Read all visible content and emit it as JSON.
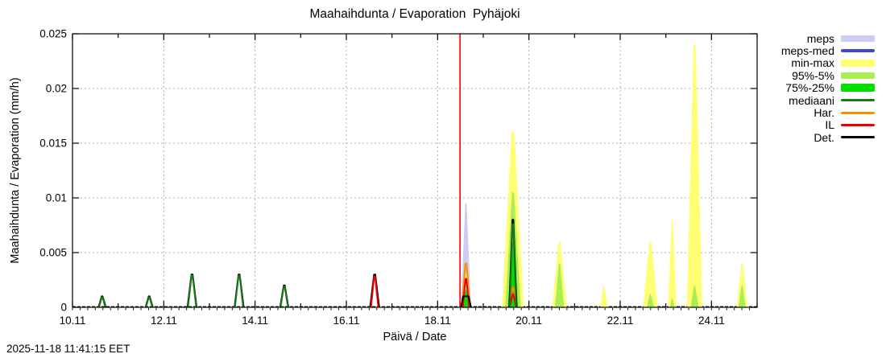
{
  "timestamp": "2025-11-18 11:41:15 EET",
  "legend": {
    "items": [
      {
        "label": "meps",
        "series": "meps"
      },
      {
        "label": "meps-med",
        "series": "meps_med"
      },
      {
        "label": "min-max",
        "series": "minmax"
      },
      {
        "label": "95%-5%",
        "series": "p95"
      },
      {
        "label": "75%-25%",
        "series": "p75"
      },
      {
        "label": "mediaani",
        "series": "mediaani"
      },
      {
        "label": "Har.",
        "series": "har"
      },
      {
        "label": "IL",
        "series": "il"
      },
      {
        "label": "Det.",
        "series": "det"
      }
    ]
  },
  "chart_data": {
    "type": "area",
    "title": "Maahaihdunta / Evaporation  Pyhäjoki",
    "xlabel": "Päivä / Date",
    "ylabel": "Maahaihdunta / Evaporation (mm/h)",
    "ylim": [
      0,
      0.025
    ],
    "x_span_days": 15,
    "grid": "dashed-major",
    "legend_position": "outside-right",
    "now_line_day": 8.49,
    "now_line_color": "#ff0000",
    "grid_color": "#b0b0b0",
    "x_ticks": [
      {
        "day": 0,
        "label": "10.11"
      },
      {
        "day": 2,
        "label": "12.11"
      },
      {
        "day": 4,
        "label": "14.11"
      },
      {
        "day": 6,
        "label": "16.11"
      },
      {
        "day": 8,
        "label": "18.11"
      },
      {
        "day": 10,
        "label": "20.11"
      },
      {
        "day": 12,
        "label": "22.11"
      },
      {
        "day": 14,
        "label": "24.11"
      }
    ],
    "y_ticks": [
      {
        "value": 0,
        "label": "0"
      },
      {
        "value": 0.005,
        "label": "0.005"
      },
      {
        "value": 0.01,
        "label": "0.01"
      },
      {
        "value": 0.015,
        "label": "0.015"
      },
      {
        "value": 0.02,
        "label": "0.02"
      },
      {
        "value": 0.025,
        "label": "0.025"
      }
    ],
    "styles": {
      "meps": {
        "color": "#ccccf2",
        "kind": "band",
        "swatch_h": 8
      },
      "meps_med": {
        "color": "#4444cc",
        "kind": "line",
        "swatch_h": 4
      },
      "minmax": {
        "color": "#ffff73",
        "kind": "band",
        "swatch_h": 9
      },
      "p95": {
        "color": "#a9ee55",
        "kind": "band",
        "swatch_h": 8
      },
      "p75": {
        "color": "#00e000",
        "kind": "band",
        "swatch_h": 10
      },
      "mediaani": {
        "color": "#1a7a1a",
        "kind": "line",
        "swatch_h": 3
      },
      "har": {
        "color": "#ff8c00",
        "kind": "line",
        "swatch_h": 3
      },
      "il": {
        "color": "#ee0000",
        "kind": "line",
        "swatch_h": 3
      },
      "det": {
        "color": "#000000",
        "kind": "line",
        "swatch_h": 3
      }
    },
    "spikes": [
      {
        "center_day": 0.65,
        "layers": [
          {
            "series": "det",
            "peak": 0.001,
            "half_width": 0.08
          },
          {
            "series": "mediaani",
            "peak": 0.00092,
            "half_width": 0.07
          }
        ]
      },
      {
        "center_day": 1.68,
        "layers": [
          {
            "series": "det",
            "peak": 0.001,
            "half_width": 0.08
          },
          {
            "series": "mediaani",
            "peak": 0.00092,
            "half_width": 0.07
          }
        ]
      },
      {
        "center_day": 2.62,
        "layers": [
          {
            "series": "det",
            "peak": 0.003,
            "half_width": 0.1
          },
          {
            "series": "mediaani",
            "peak": 0.0029,
            "half_width": 0.09
          }
        ]
      },
      {
        "center_day": 3.65,
        "layers": [
          {
            "series": "det",
            "peak": 0.003,
            "half_width": 0.1
          },
          {
            "series": "mediaani",
            "peak": 0.0029,
            "half_width": 0.09
          }
        ]
      },
      {
        "center_day": 4.64,
        "layers": [
          {
            "series": "det",
            "peak": 0.002,
            "half_width": 0.09
          },
          {
            "series": "mediaani",
            "peak": 0.0019,
            "half_width": 0.08
          }
        ]
      },
      {
        "center_day": 6.62,
        "layers": [
          {
            "series": "det",
            "peak": 0.003,
            "half_width": 0.1
          },
          {
            "series": "il",
            "peak": 0.0028,
            "half_width": 0.08
          }
        ]
      },
      {
        "center_day": 8.62,
        "layers": [
          {
            "series": "meps",
            "peak": 0.0095,
            "half_width": 0.11
          },
          {
            "series": "minmax",
            "peak": 0.0032,
            "half_width": 0.12
          },
          {
            "series": "p75",
            "peak": 0.0016,
            "half_width": 0.07
          },
          {
            "series": "har",
            "peak": 0.004,
            "half_width": 0.09
          },
          {
            "series": "il",
            "peak": 0.0026,
            "half_width": 0.07
          },
          {
            "series": "det",
            "peak": 0.001,
            "half_width": 0.11,
            "flat": 0.55
          }
        ]
      },
      {
        "center_day": 9.65,
        "layers": [
          {
            "series": "minmax",
            "peak": 0.016,
            "half_width": 0.24
          },
          {
            "series": "p95",
            "peak": 0.0105,
            "half_width": 0.17
          },
          {
            "series": "p75",
            "peak": 0.006,
            "half_width": 0.11
          },
          {
            "series": "har",
            "peak": 0.0018,
            "half_width": 0.09
          },
          {
            "series": "il",
            "peak": 0.0012,
            "half_width": 0.07
          },
          {
            "series": "det",
            "peak": 0.008,
            "half_width": 0.08
          },
          {
            "series": "mediaani",
            "peak": 0.0076,
            "half_width": 0.07
          }
        ]
      },
      {
        "center_day": 10.67,
        "layers": [
          {
            "series": "minmax",
            "peak": 0.006,
            "half_width": 0.16
          },
          {
            "series": "p95",
            "peak": 0.004,
            "half_width": 0.1
          }
        ]
      },
      {
        "center_day": 11.64,
        "layers": [
          {
            "series": "minmax",
            "peak": 0.002,
            "half_width": 0.08
          }
        ]
      },
      {
        "center_day": 12.66,
        "layers": [
          {
            "series": "minmax",
            "peak": 0.006,
            "half_width": 0.16
          },
          {
            "series": "p95",
            "peak": 0.0012,
            "half_width": 0.08
          }
        ]
      },
      {
        "center_day": 13.14,
        "layers": [
          {
            "series": "minmax",
            "peak": 0.008,
            "half_width": 0.09
          },
          {
            "series": "p95",
            "peak": 0.0008,
            "half_width": 0.05
          }
        ]
      },
      {
        "center_day": 13.63,
        "layers": [
          {
            "series": "minmax",
            "peak": 0.024,
            "half_width": 0.17
          },
          {
            "series": "p95",
            "peak": 0.002,
            "half_width": 0.09
          }
        ]
      },
      {
        "center_day": 14.67,
        "layers": [
          {
            "series": "minmax",
            "peak": 0.004,
            "half_width": 0.12
          },
          {
            "series": "p95",
            "peak": 0.002,
            "half_width": 0.08
          }
        ]
      }
    ]
  }
}
